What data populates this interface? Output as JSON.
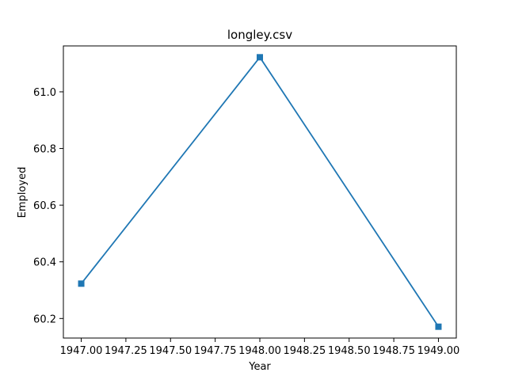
{
  "chart_data": {
    "type": "line",
    "title": "longley.csv",
    "xlabel": "Year",
    "ylabel": "Employed",
    "x": [
      1947,
      1948,
      1949
    ],
    "series": [
      {
        "values": [
          60.323,
          61.122,
          60.171
        ],
        "color": "#1f77b4",
        "marker": "square"
      }
    ],
    "xlim": [
      1946.9,
      1949.1
    ],
    "ylim": [
      60.131,
      61.162
    ],
    "xticks": [
      1947.0,
      1947.25,
      1947.5,
      1947.75,
      1948.0,
      1948.25,
      1948.5,
      1948.75,
      1949.0
    ],
    "xtick_labels": [
      "1947.00",
      "1947.25",
      "1947.50",
      "1947.75",
      "1948.00",
      "1948.25",
      "1948.50",
      "1948.75",
      "1949.00"
    ],
    "yticks": [
      60.2,
      60.4,
      60.6,
      60.8,
      61.0
    ],
    "ytick_labels": [
      "60.2",
      "60.4",
      "60.6",
      "60.8",
      "61.0"
    ],
    "grid": false,
    "legend": "none"
  }
}
